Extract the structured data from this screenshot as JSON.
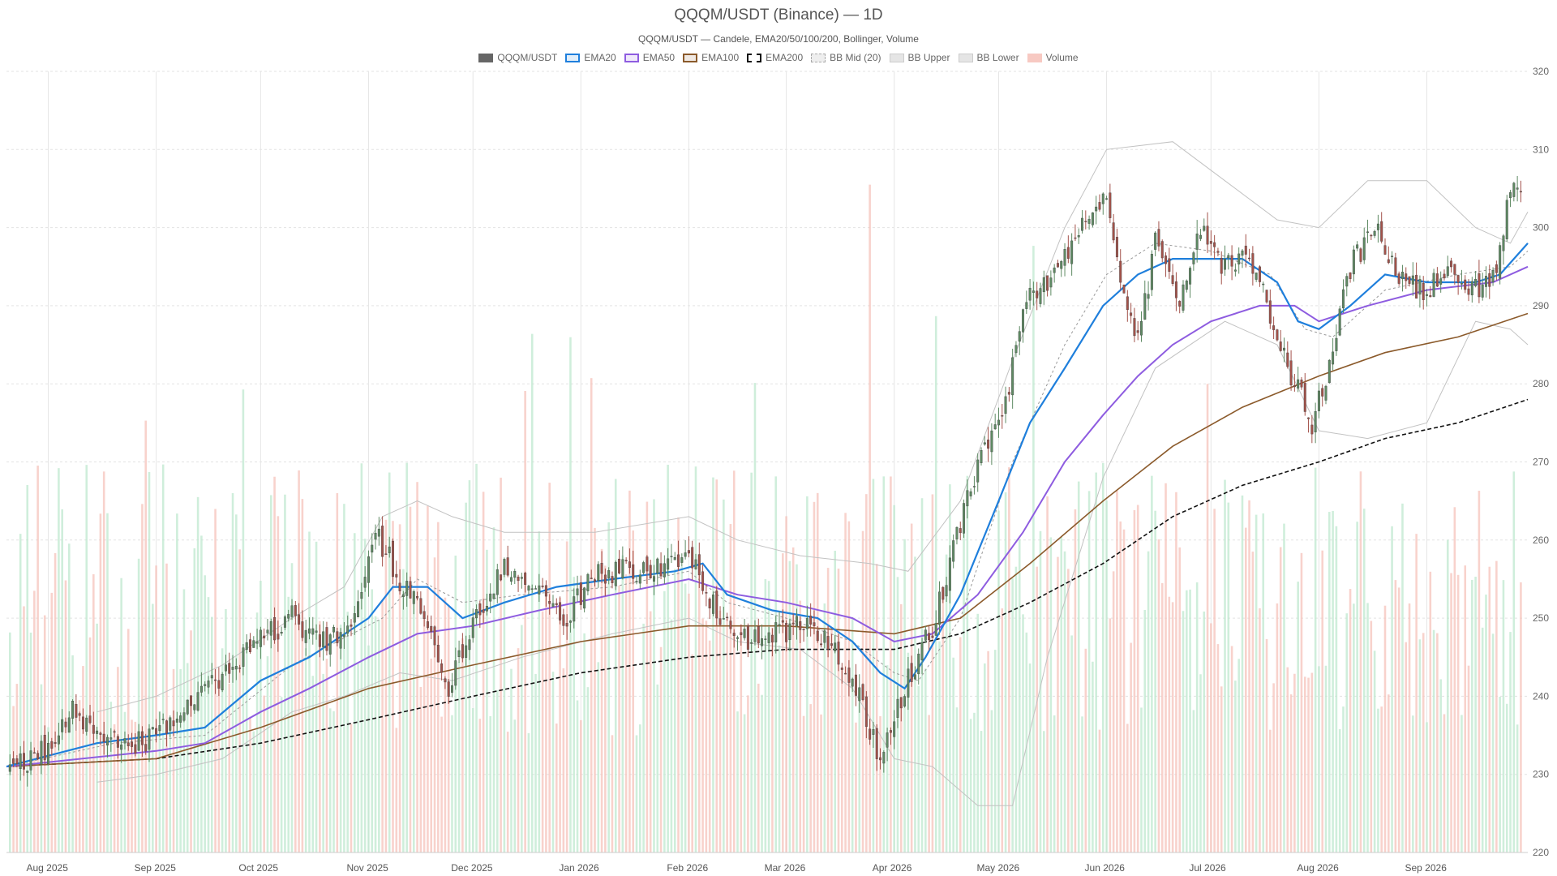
{
  "chart_data": {
    "type": "candlestick",
    "title": "QQQM/USDT (Binance) — 1D",
    "subtitle": "QQQM/USDT — Candele, EMA20/50/100/200, Bollinger, Volume",
    "legend_placement": "top-center",
    "grid": true,
    "x_range": [
      "2025-07-20",
      "2026-09-30"
    ],
    "ylim": [
      220,
      320
    ],
    "yticks": [
      220,
      230,
      240,
      250,
      260,
      270,
      280,
      290,
      300,
      310,
      320
    ],
    "xticks": [
      {
        "date": "2025-08-01",
        "label": "Aug 2025"
      },
      {
        "date": "2025-09-01",
        "label": "Sep 2025"
      },
      {
        "date": "2025-10-01",
        "label": "Oct 2025"
      },
      {
        "date": "2025-11-01",
        "label": "Nov 2025"
      },
      {
        "date": "2025-12-01",
        "label": "Dec 2025"
      },
      {
        "date": "2026-01-01",
        "label": "Jan 2026"
      },
      {
        "date": "2026-02-01",
        "label": "Feb 2026"
      },
      {
        "date": "2026-03-01",
        "label": "Mar 2026"
      },
      {
        "date": "2026-04-01",
        "label": "Apr 2026"
      },
      {
        "date": "2026-05-01",
        "label": "May 2026"
      },
      {
        "date": "2026-06-01",
        "label": "Jun 2026"
      },
      {
        "date": "2026-07-01",
        "label": "Jul 2026"
      },
      {
        "date": "2026-08-01",
        "label": "Aug 2026"
      },
      {
        "date": "2026-09-01",
        "label": "Sep 2026"
      }
    ],
    "legend": [
      {
        "name": "QQQM/USDT",
        "color": "#666666",
        "style": "fill"
      },
      {
        "name": "EMA20",
        "color": "#1f7fdc",
        "style": "line"
      },
      {
        "name": "EMA50",
        "color": "#8e5ce0",
        "style": "line"
      },
      {
        "name": "EMA100",
        "color": "#8b5a2b",
        "style": "line"
      },
      {
        "name": "EMA200",
        "color": "#111111",
        "style": "dash"
      },
      {
        "name": "BB Mid (20)",
        "color": "#aaaaaa",
        "style": "dotted"
      },
      {
        "name": "BB Upper",
        "color": "#bbbbbb",
        "style": "band"
      },
      {
        "name": "BB Lower",
        "color": "#bbbbbb",
        "style": "band"
      },
      {
        "name": "Volume",
        "color": "#f4a9a0",
        "style": "fill"
      }
    ],
    "colors": {
      "up": "#5e8a63",
      "down": "#a3524a",
      "vol_up": "#bfe8cf",
      "vol_down": "#f6c3bb"
    },
    "close_path": [
      [
        "2025-07-20",
        231
      ],
      [
        "2025-08-01",
        233
      ],
      [
        "2025-08-08",
        238
      ],
      [
        "2025-08-15",
        236
      ],
      [
        "2025-08-22",
        233
      ],
      [
        "2025-09-01",
        235
      ],
      [
        "2025-09-08",
        237
      ],
      [
        "2025-09-15",
        241
      ],
      [
        "2025-09-25",
        245
      ],
      [
        "2025-10-01",
        247
      ],
      [
        "2025-10-10",
        250
      ],
      [
        "2025-10-20",
        247
      ],
      [
        "2025-10-28",
        250
      ],
      [
        "2025-11-03",
        261
      ],
      [
        "2025-11-10",
        255
      ],
      [
        "2025-11-18",
        250
      ],
      [
        "2025-11-24",
        241
      ],
      [
        "2025-12-01",
        250
      ],
      [
        "2025-12-10",
        256
      ],
      [
        "2025-12-20",
        255
      ],
      [
        "2025-12-28",
        250
      ],
      [
        "2026-01-05",
        256
      ],
      [
        "2026-01-15",
        256
      ],
      [
        "2026-01-25",
        256
      ],
      [
        "2026-02-01",
        258
      ],
      [
        "2026-02-08",
        252
      ],
      [
        "2026-02-15",
        247
      ],
      [
        "2026-02-25",
        248
      ],
      [
        "2026-03-05",
        249
      ],
      [
        "2026-03-15",
        246
      ],
      [
        "2026-03-22",
        240
      ],
      [
        "2026-03-28",
        232
      ],
      [
        "2026-04-01",
        237
      ],
      [
        "2026-04-05",
        242
      ],
      [
        "2026-04-12",
        249
      ],
      [
        "2026-04-20",
        262
      ],
      [
        "2026-04-26",
        271
      ],
      [
        "2026-05-03",
        278
      ],
      [
        "2026-05-10",
        292
      ],
      [
        "2026-05-17",
        294
      ],
      [
        "2026-05-24",
        299
      ],
      [
        "2026-06-01",
        305
      ],
      [
        "2026-06-05",
        294
      ],
      [
        "2026-06-10",
        285
      ],
      [
        "2026-06-15",
        298
      ],
      [
        "2026-06-22",
        290
      ],
      [
        "2026-06-28",
        300
      ],
      [
        "2026-07-05",
        295
      ],
      [
        "2026-07-12",
        296
      ],
      [
        "2026-07-18",
        289
      ],
      [
        "2026-07-24",
        281
      ],
      [
        "2026-07-30",
        275
      ],
      [
        "2026-08-05",
        284
      ],
      [
        "2026-08-10",
        295
      ],
      [
        "2026-08-17",
        300
      ],
      [
        "2026-08-24",
        293
      ],
      [
        "2026-08-31",
        292
      ],
      [
        "2026-09-07",
        294
      ],
      [
        "2026-09-14",
        292
      ],
      [
        "2026-09-21",
        294
      ],
      [
        "2026-09-25",
        306
      ],
      [
        "2026-09-28",
        305
      ]
    ],
    "ema20": [
      [
        "2025-07-20",
        231
      ],
      [
        "2025-08-15",
        234
      ],
      [
        "2025-09-01",
        235
      ],
      [
        "2025-09-15",
        236
      ],
      [
        "2025-10-01",
        242
      ],
      [
        "2025-10-15",
        245
      ],
      [
        "2025-11-01",
        250
      ],
      [
        "2025-11-08",
        254
      ],
      [
        "2025-11-18",
        254
      ],
      [
        "2025-11-28",
        250
      ],
      [
        "2025-12-10",
        252
      ],
      [
        "2025-12-25",
        254
      ],
      [
        "2026-01-10",
        255
      ],
      [
        "2026-01-28",
        256
      ],
      [
        "2026-02-05",
        257
      ],
      [
        "2026-02-12",
        253
      ],
      [
        "2026-02-25",
        251
      ],
      [
        "2026-03-10",
        250
      ],
      [
        "2026-03-20",
        247
      ],
      [
        "2026-03-28",
        243
      ],
      [
        "2026-04-04",
        241
      ],
      [
        "2026-04-10",
        245
      ],
      [
        "2026-04-20",
        253
      ],
      [
        "2026-05-01",
        265
      ],
      [
        "2026-05-10",
        275
      ],
      [
        "2026-05-20",
        282
      ],
      [
        "2026-05-31",
        290
      ],
      [
        "2026-06-10",
        294
      ],
      [
        "2026-06-20",
        296
      ],
      [
        "2026-07-01",
        296
      ],
      [
        "2026-07-10",
        296
      ],
      [
        "2026-07-20",
        293
      ],
      [
        "2026-07-26",
        288
      ],
      [
        "2026-08-01",
        287
      ],
      [
        "2026-08-10",
        290
      ],
      [
        "2026-08-20",
        294
      ],
      [
        "2026-09-01",
        293
      ],
      [
        "2026-09-15",
        293
      ],
      [
        "2026-09-22",
        294
      ],
      [
        "2026-09-30",
        298
      ]
    ],
    "ema50": [
      [
        "2025-07-20",
        231
      ],
      [
        "2025-09-01",
        233
      ],
      [
        "2025-09-15",
        234
      ],
      [
        "2025-10-01",
        238
      ],
      [
        "2025-10-15",
        241
      ],
      [
        "2025-11-01",
        245
      ],
      [
        "2025-11-15",
        248
      ],
      [
        "2025-12-01",
        249
      ],
      [
        "2025-12-20",
        251
      ],
      [
        "2026-01-10",
        253
      ],
      [
        "2026-02-01",
        255
      ],
      [
        "2026-02-15",
        253
      ],
      [
        "2026-03-01",
        252
      ],
      [
        "2026-03-20",
        250
      ],
      [
        "2026-04-01",
        247
      ],
      [
        "2026-04-12",
        248
      ],
      [
        "2026-04-25",
        253
      ],
      [
        "2026-05-08",
        261
      ],
      [
        "2026-05-20",
        270
      ],
      [
        "2026-05-31",
        276
      ],
      [
        "2026-06-10",
        281
      ],
      [
        "2026-06-20",
        285
      ],
      [
        "2026-07-01",
        288
      ],
      [
        "2026-07-15",
        290
      ],
      [
        "2026-07-25",
        290
      ],
      [
        "2026-08-01",
        288
      ],
      [
        "2026-08-15",
        290
      ],
      [
        "2026-09-01",
        292
      ],
      [
        "2026-09-20",
        293
      ],
      [
        "2026-09-30",
        295
      ]
    ],
    "ema100": [
      [
        "2025-07-20",
        231
      ],
      [
        "2025-09-01",
        232
      ],
      [
        "2025-10-01",
        236
      ],
      [
        "2025-11-01",
        241
      ],
      [
        "2025-12-01",
        244
      ],
      [
        "2026-01-01",
        247
      ],
      [
        "2026-02-01",
        249
      ],
      [
        "2026-03-01",
        249
      ],
      [
        "2026-04-01",
        248
      ],
      [
        "2026-04-20",
        250
      ],
      [
        "2026-05-10",
        257
      ],
      [
        "2026-05-31",
        265
      ],
      [
        "2026-06-20",
        272
      ],
      [
        "2026-07-10",
        277
      ],
      [
        "2026-08-01",
        281
      ],
      [
        "2026-08-20",
        284
      ],
      [
        "2026-09-10",
        286
      ],
      [
        "2026-09-30",
        289
      ]
    ],
    "ema200": [
      [
        "2025-07-20",
        231
      ],
      [
        "2025-09-01",
        232
      ],
      [
        "2025-10-01",
        234
      ],
      [
        "2025-11-01",
        237
      ],
      [
        "2025-12-01",
        240
      ],
      [
        "2026-01-01",
        243
      ],
      [
        "2026-02-01",
        245
      ],
      [
        "2026-03-01",
        246
      ],
      [
        "2026-04-01",
        246
      ],
      [
        "2026-04-20",
        248
      ],
      [
        "2026-05-10",
        252
      ],
      [
        "2026-05-31",
        257
      ],
      [
        "2026-06-20",
        263
      ],
      [
        "2026-07-10",
        267
      ],
      [
        "2026-08-01",
        270
      ],
      [
        "2026-08-20",
        273
      ],
      [
        "2026-09-10",
        275
      ],
      [
        "2026-09-30",
        278
      ]
    ],
    "bb_mid": [
      [
        "2025-07-20",
        231
      ],
      [
        "2025-08-20",
        234
      ],
      [
        "2025-09-15",
        235
      ],
      [
        "2025-10-10",
        244
      ],
      [
        "2025-11-05",
        250
      ],
      [
        "2025-11-15",
        255
      ],
      [
        "2025-11-28",
        252
      ],
      [
        "2025-12-15",
        253
      ],
      [
        "2026-01-10",
        254
      ],
      [
        "2026-02-01",
        256
      ],
      [
        "2026-02-12",
        252
      ],
      [
        "2026-03-01",
        250
      ],
      [
        "2026-03-20",
        247
      ],
      [
        "2026-04-01",
        243
      ],
      [
        "2026-04-08",
        242
      ],
      [
        "2026-04-20",
        250
      ],
      [
        "2026-05-05",
        270
      ],
      [
        "2026-05-20",
        285
      ],
      [
        "2026-06-01",
        294
      ],
      [
        "2026-06-15",
        298
      ],
      [
        "2026-07-01",
        297
      ],
      [
        "2026-07-18",
        294
      ],
      [
        "2026-07-28",
        287
      ],
      [
        "2026-08-05",
        286
      ],
      [
        "2026-08-20",
        292
      ],
      [
        "2026-09-10",
        294
      ],
      [
        "2026-09-25",
        295
      ],
      [
        "2026-09-30",
        297
      ]
    ],
    "bb_upper": [
      [
        "2025-08-15",
        238
      ],
      [
        "2025-09-01",
        240
      ],
      [
        "2025-09-20",
        244
      ],
      [
        "2025-10-10",
        250
      ],
      [
        "2025-10-25",
        254
      ],
      [
        "2025-11-05",
        263
      ],
      [
        "2025-11-15",
        265
      ],
      [
        "2025-11-25",
        263
      ],
      [
        "2025-12-10",
        261
      ],
      [
        "2026-01-05",
        261
      ],
      [
        "2026-02-01",
        263
      ],
      [
        "2026-02-15",
        260
      ],
      [
        "2026-03-05",
        258
      ],
      [
        "2026-03-25",
        257
      ],
      [
        "2026-04-05",
        256
      ],
      [
        "2026-04-20",
        265
      ],
      [
        "2026-05-05",
        283
      ],
      [
        "2026-05-20",
        300
      ],
      [
        "2026-06-01",
        310
      ],
      [
        "2026-06-20",
        311
      ],
      [
        "2026-07-05",
        306
      ],
      [
        "2026-07-20",
        301
      ],
      [
        "2026-08-01",
        300
      ],
      [
        "2026-08-15",
        306
      ],
      [
        "2026-09-01",
        306
      ],
      [
        "2026-09-15",
        300
      ],
      [
        "2026-09-25",
        298
      ],
      [
        "2026-09-30",
        302
      ]
    ],
    "bb_lower": [
      [
        "2025-08-15",
        229
      ],
      [
        "2025-09-01",
        230
      ],
      [
        "2025-09-20",
        232
      ],
      [
        "2025-10-10",
        238
      ],
      [
        "2025-10-25",
        240
      ],
      [
        "2025-11-10",
        243
      ],
      [
        "2025-11-25",
        242
      ],
      [
        "2025-12-15",
        245
      ],
      [
        "2026-01-10",
        248
      ],
      [
        "2026-02-01",
        250
      ],
      [
        "2026-02-15",
        247
      ],
      [
        "2026-03-05",
        246
      ],
      [
        "2026-03-20",
        241
      ],
      [
        "2026-04-01",
        232
      ],
      [
        "2026-04-12",
        231
      ],
      [
        "2026-04-25",
        226
      ],
      [
        "2026-05-05",
        226
      ],
      [
        "2026-05-15",
        245
      ],
      [
        "2026-05-31",
        268
      ],
      [
        "2026-06-15",
        282
      ],
      [
        "2026-07-05",
        288
      ],
      [
        "2026-07-20",
        285
      ],
      [
        "2026-08-01",
        274
      ],
      [
        "2026-08-15",
        273
      ],
      [
        "2026-09-01",
        275
      ],
      [
        "2026-09-15",
        288
      ],
      [
        "2026-09-25",
        287
      ],
      [
        "2026-09-30",
        285
      ]
    ]
  }
}
